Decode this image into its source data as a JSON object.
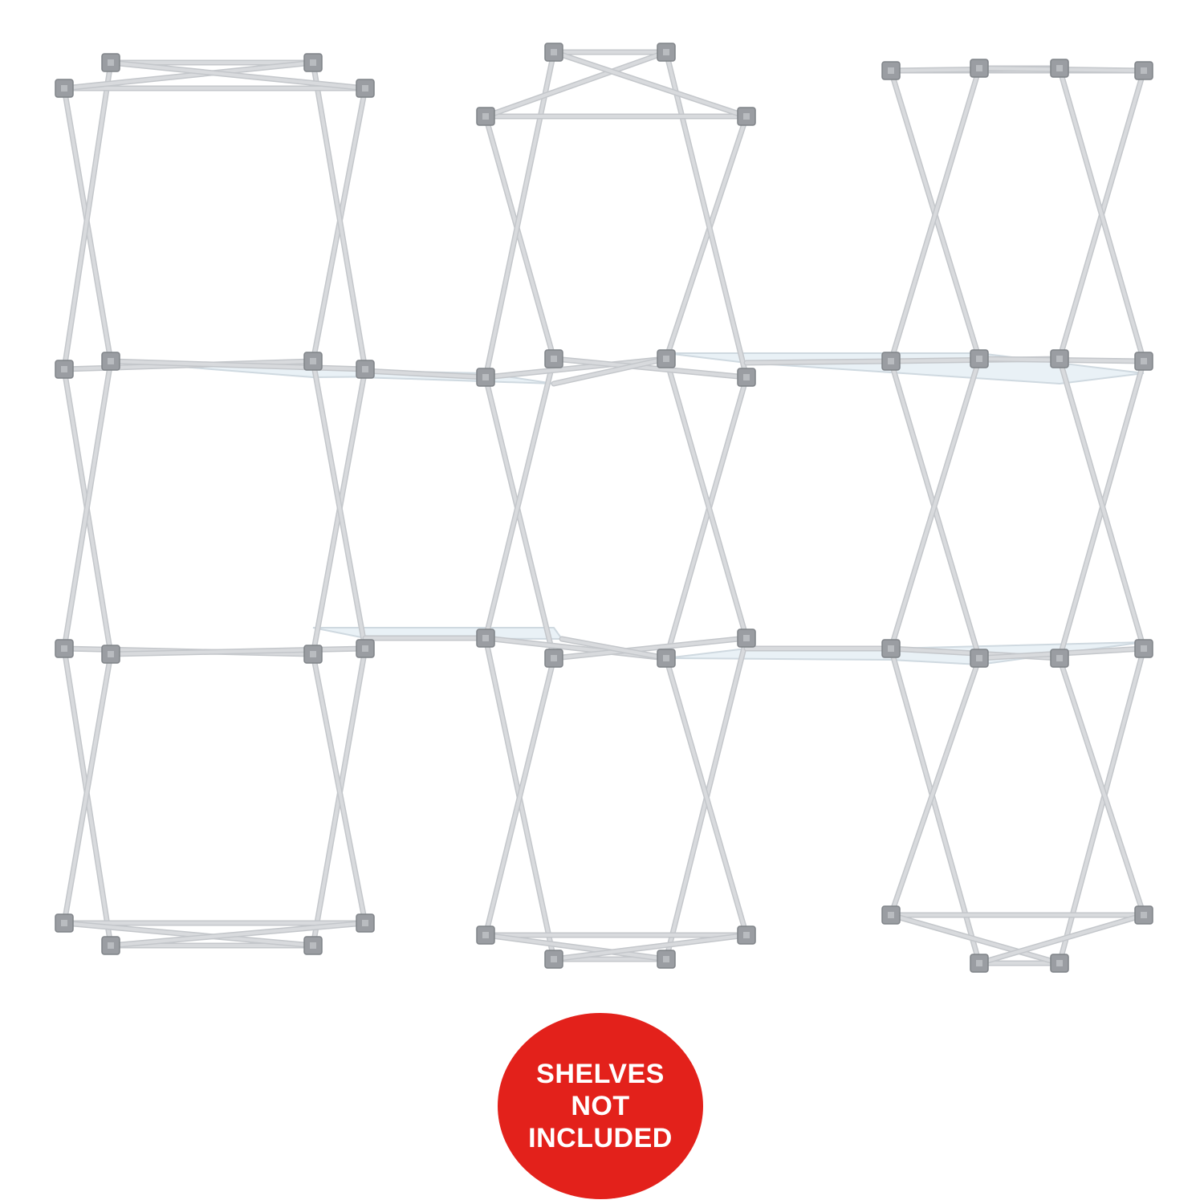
{
  "image": {
    "subject": "pop-up display frame with shelves",
    "background_color": "#ffffff",
    "frame_color": "#d8dadd",
    "hub_color": "#9a9da2",
    "shelf_color": "#e9f1f6"
  },
  "badge": {
    "color": "#e3211b",
    "text_color": "#ffffff",
    "lines": [
      "SHELVES",
      "NOT",
      "INCLUDED"
    ]
  }
}
